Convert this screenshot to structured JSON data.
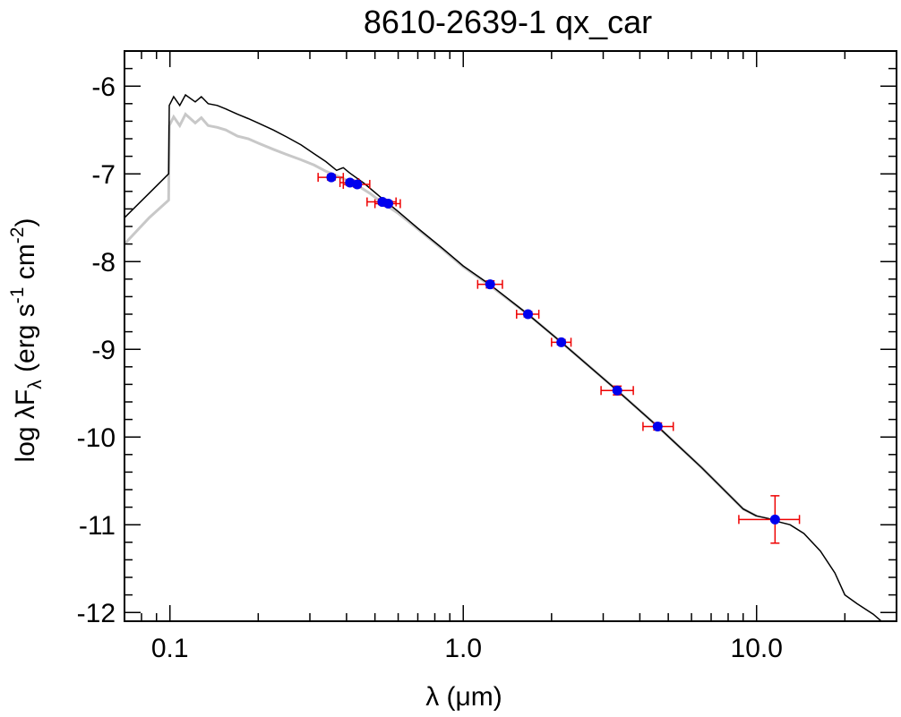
{
  "chart_data": {
    "type": "scatter",
    "title": "8610-2639-1   qx_car",
    "xlabel": {
      "main": "λ (",
      "unit": "μm",
      "close": ")"
    },
    "ylabel": {
      "prefix": "log λF",
      "subscript": "λ",
      "units_open": " (erg s",
      "exp1": "-1",
      "units_mid": " cm",
      "exp2": "-2",
      "units_close": ")"
    },
    "x_scale": "log",
    "xlim": [
      0.07,
      30
    ],
    "ylim": [
      -12.1,
      -5.6
    ],
    "x_ticks": [
      {
        "value": 0.1,
        "label": "0.1"
      },
      {
        "value": 1.0,
        "label": "1.0"
      },
      {
        "value": 10.0,
        "label": "10.0"
      }
    ],
    "y_ticks": [
      {
        "value": -6,
        "label": "-6"
      },
      {
        "value": -7,
        "label": "-7"
      },
      {
        "value": -8,
        "label": "-8"
      },
      {
        "value": -9,
        "label": "-9"
      },
      {
        "value": -10,
        "label": "-10"
      },
      {
        "value": -11,
        "label": "-11"
      },
      {
        "value": -12,
        "label": "-12"
      }
    ],
    "colors": {
      "model": "#000000",
      "model_secondary": "#c8c8c8",
      "points": "#0000ee",
      "errorbars": "#ee0000"
    },
    "photometry": [
      {
        "x": 0.355,
        "y": -7.04,
        "xlo": 0.32,
        "xhi": 0.39,
        "yerr": 0.03
      },
      {
        "x": 0.411,
        "y": -7.1,
        "xlo": 0.38,
        "xhi": 0.44,
        "yerr": 0.03
      },
      {
        "x": 0.435,
        "y": -7.12,
        "xlo": 0.39,
        "xhi": 0.48,
        "yerr": 0.03
      },
      {
        "x": 0.53,
        "y": -7.32,
        "xlo": 0.47,
        "xhi": 0.59,
        "yerr": 0.03
      },
      {
        "x": 0.555,
        "y": -7.34,
        "xlo": 0.5,
        "xhi": 0.61,
        "yerr": 0.03
      },
      {
        "x": 1.235,
        "y": -8.26,
        "xlo": 1.12,
        "xhi": 1.36,
        "yerr": 0.04
      },
      {
        "x": 1.662,
        "y": -8.6,
        "xlo": 1.52,
        "xhi": 1.81,
        "yerr": 0.03
      },
      {
        "x": 2.159,
        "y": -8.92,
        "xlo": 2.0,
        "xhi": 2.33,
        "yerr": 0.03
      },
      {
        "x": 3.35,
        "y": -9.47,
        "xlo": 2.95,
        "xhi": 3.8,
        "yerr": 0.05
      },
      {
        "x": 4.6,
        "y": -9.88,
        "xlo": 4.1,
        "xhi": 5.2,
        "yerr": 0.04
      },
      {
        "x": 11.56,
        "y": -10.94,
        "xlo": 8.7,
        "xhi": 14.0,
        "yerr": 0.27
      }
    ],
    "model_black": [
      [
        0.07,
        -7.5
      ],
      [
        0.085,
        -7.22
      ],
      [
        0.099,
        -7.0
      ],
      [
        0.0995,
        -6.22
      ],
      [
        0.103,
        -6.12
      ],
      [
        0.108,
        -6.22
      ],
      [
        0.113,
        -6.1
      ],
      [
        0.122,
        -6.18
      ],
      [
        0.128,
        -6.12
      ],
      [
        0.135,
        -6.2
      ],
      [
        0.145,
        -6.22
      ],
      [
        0.155,
        -6.26
      ],
      [
        0.17,
        -6.32
      ],
      [
        0.185,
        -6.37
      ],
      [
        0.2,
        -6.42
      ],
      [
        0.225,
        -6.5
      ],
      [
        0.25,
        -6.58
      ],
      [
        0.28,
        -6.67
      ],
      [
        0.31,
        -6.77
      ],
      [
        0.34,
        -6.86
      ],
      [
        0.37,
        -6.96
      ],
      [
        0.39,
        -6.93
      ],
      [
        0.41,
        -6.99
      ],
      [
        0.46,
        -7.11
      ],
      [
        0.52,
        -7.26
      ],
      [
        0.6,
        -7.43
      ],
      [
        0.7,
        -7.62
      ],
      [
        0.85,
        -7.85
      ],
      [
        1.0,
        -8.05
      ],
      [
        1.23,
        -8.26
      ],
      [
        1.66,
        -8.6
      ],
      [
        2.16,
        -8.92
      ],
      [
        3.35,
        -9.47
      ],
      [
        4.6,
        -9.88
      ],
      [
        6.5,
        -10.35
      ],
      [
        9.0,
        -10.82
      ],
      [
        10.0,
        -10.9
      ],
      [
        11.0,
        -10.93
      ],
      [
        12.0,
        -10.97
      ],
      [
        13.0,
        -11.0
      ],
      [
        14.5,
        -11.1
      ],
      [
        16.5,
        -11.3
      ],
      [
        18.5,
        -11.55
      ],
      [
        20.0,
        -11.8
      ],
      [
        22.0,
        -11.9
      ],
      [
        25.0,
        -12.02
      ],
      [
        30.0,
        -12.25
      ]
    ],
    "model_gray": [
      [
        0.07,
        -7.8
      ],
      [
        0.085,
        -7.5
      ],
      [
        0.099,
        -7.3
      ],
      [
        0.0995,
        -6.45
      ],
      [
        0.103,
        -6.35
      ],
      [
        0.108,
        -6.45
      ],
      [
        0.113,
        -6.32
      ],
      [
        0.122,
        -6.42
      ],
      [
        0.128,
        -6.36
      ],
      [
        0.135,
        -6.45
      ],
      [
        0.145,
        -6.47
      ],
      [
        0.155,
        -6.5
      ],
      [
        0.17,
        -6.57
      ],
      [
        0.185,
        -6.6
      ],
      [
        0.2,
        -6.65
      ],
      [
        0.225,
        -6.72
      ],
      [
        0.25,
        -6.78
      ],
      [
        0.28,
        -6.84
      ],
      [
        0.31,
        -6.9
      ],
      [
        0.34,
        -6.97
      ],
      [
        0.37,
        -7.02
      ],
      [
        0.4,
        -7.07
      ],
      [
        0.43,
        -7.12
      ],
      [
        0.48,
        -7.22
      ],
      [
        0.53,
        -7.33
      ],
      [
        0.6,
        -7.45
      ],
      [
        0.7,
        -7.63
      ],
      [
        0.85,
        -7.86
      ],
      [
        1.0,
        -8.06
      ],
      [
        1.23,
        -8.27
      ],
      [
        1.66,
        -8.6
      ],
      [
        2.16,
        -8.92
      ],
      [
        3.35,
        -9.47
      ],
      [
        4.6,
        -9.88
      ],
      [
        6.5,
        -10.35
      ],
      [
        9.0,
        -10.82
      ],
      [
        10.0,
        -10.9
      ]
    ]
  }
}
